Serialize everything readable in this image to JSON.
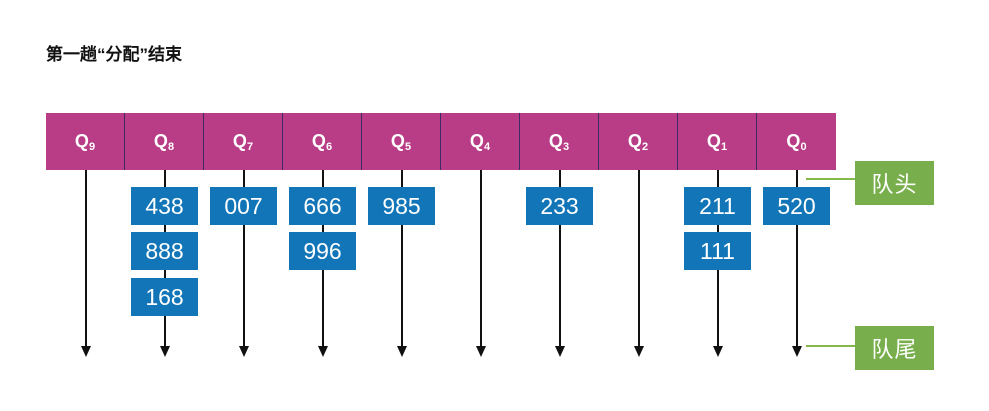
{
  "title": "第一趟“分配”结束",
  "queues": [
    {
      "name": "Q",
      "sub": "9",
      "records": []
    },
    {
      "name": "Q",
      "sub": "8",
      "records": [
        "438",
        "888",
        "168"
      ]
    },
    {
      "name": "Q",
      "sub": "7",
      "records": [
        "007"
      ]
    },
    {
      "name": "Q",
      "sub": "6",
      "records": [
        "666",
        "996"
      ]
    },
    {
      "name": "Q",
      "sub": "5",
      "records": [
        "985"
      ]
    },
    {
      "name": "Q",
      "sub": "4",
      "records": []
    },
    {
      "name": "Q",
      "sub": "3",
      "records": [
        "233"
      ]
    },
    {
      "name": "Q",
      "sub": "2",
      "records": []
    },
    {
      "name": "Q",
      "sub": "1",
      "records": [
        "211",
        "111"
      ]
    },
    {
      "name": "Q",
      "sub": "0",
      "records": [
        "520"
      ]
    }
  ],
  "pointers": {
    "head_label": "队头",
    "tail_label": "队尾"
  },
  "colors": {
    "queue_bar": "#b83d86",
    "record_box": "#1175b8",
    "pointer_label": "#78af4c"
  }
}
